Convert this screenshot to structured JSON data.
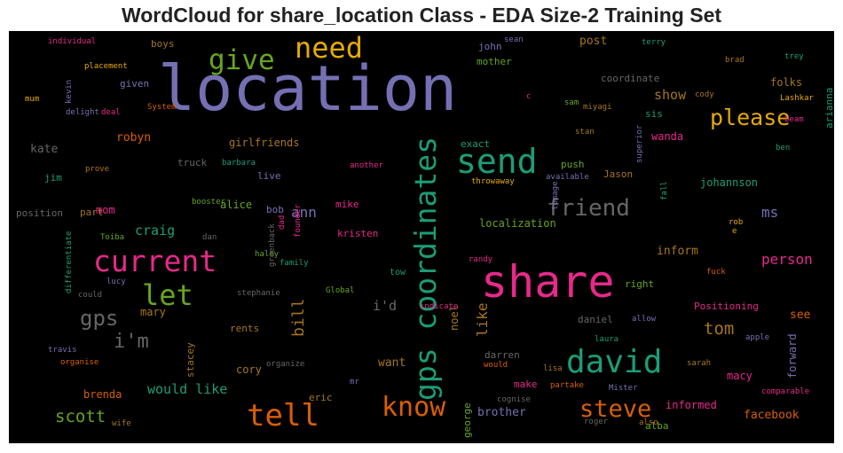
{
  "title": "WordCloud for share_location Class - EDA Size-2 Training Set",
  "chart_data": {
    "type": "wordcloud",
    "words": [
      {
        "text": "location",
        "color": "#7570b3"
      },
      {
        "text": "share",
        "color": "#e7298a"
      },
      {
        "text": "gps coordinates",
        "color": "#1b9e77"
      },
      {
        "text": "send",
        "color": "#1b9e77"
      },
      {
        "text": "david",
        "color": "#1b9e77"
      },
      {
        "text": "current",
        "color": "#e7298a"
      },
      {
        "text": "tell",
        "color": "#d95f02"
      },
      {
        "text": "friend",
        "color": "#666666"
      },
      {
        "text": "know",
        "color": "#d95f02"
      },
      {
        "text": "steve",
        "color": "#d95f02"
      },
      {
        "text": "give",
        "color": "#66a61e"
      },
      {
        "text": "need",
        "color": "#e6ab02"
      },
      {
        "text": "let",
        "color": "#66a61e"
      },
      {
        "text": "please",
        "color": "#e6ab02"
      },
      {
        "text": "gps",
        "color": "#666666"
      },
      {
        "text": "i'm",
        "color": "#666666"
      },
      {
        "text": "scott",
        "color": "#66a61e"
      },
      {
        "text": "tom",
        "color": "#a6761d"
      },
      {
        "text": "person",
        "color": "#e7298a"
      },
      {
        "text": "bill",
        "color": "#a6761d"
      },
      {
        "text": "ann",
        "color": "#7570b3"
      },
      {
        "text": "like",
        "color": "#a6761d"
      },
      {
        "text": "would like",
        "color": "#1b9e77"
      },
      {
        "text": "ms",
        "color": "#7570b3"
      },
      {
        "text": "craig",
        "color": "#1b9e77"
      },
      {
        "text": "show",
        "color": "#a6761d"
      },
      {
        "text": "i'd",
        "color": "#666666"
      },
      {
        "text": "robyn",
        "color": "#d95f02"
      },
      {
        "text": "facebook",
        "color": "#d95f02"
      },
      {
        "text": "brother",
        "color": "#7570b3"
      },
      {
        "text": "kate",
        "color": "#666666"
      },
      {
        "text": "mom",
        "color": "#e7298a"
      },
      {
        "text": "mary",
        "color": "#a6761d"
      },
      {
        "text": "post",
        "color": "#a6761d"
      },
      {
        "text": "inform",
        "color": "#a6761d"
      },
      {
        "text": "macy",
        "color": "#e7298a"
      },
      {
        "text": "see",
        "color": "#d95f02"
      },
      {
        "text": "forward",
        "color": "#7570b3"
      },
      {
        "text": "noel",
        "color": "#a6761d"
      },
      {
        "text": "want",
        "color": "#a6761d"
      },
      {
        "text": "brenda",
        "color": "#d95f02"
      },
      {
        "text": "cory",
        "color": "#a6761d"
      },
      {
        "text": "wanda",
        "color": "#e7298a"
      },
      {
        "text": "folks",
        "color": "#a6761d"
      },
      {
        "text": "johannson",
        "color": "#1b9e77"
      },
      {
        "text": "girlfriends",
        "color": "#a6761d"
      },
      {
        "text": "informed",
        "color": "#e7298a"
      },
      {
        "text": "localization",
        "color": "#66a61e"
      },
      {
        "text": "coordinate",
        "color": "#666666"
      },
      {
        "text": "jim",
        "color": "#1b9e77"
      },
      {
        "text": "part",
        "color": "#a6761d"
      },
      {
        "text": "alice",
        "color": "#66a61e"
      },
      {
        "text": "mike",
        "color": "#e7298a"
      },
      {
        "text": "kristen",
        "color": "#e7298a"
      },
      {
        "text": "exact",
        "color": "#1b9e77"
      },
      {
        "text": "push",
        "color": "#66a61e"
      },
      {
        "text": "Jason",
        "color": "#a6761d"
      },
      {
        "text": "sis",
        "color": "#1b9e77"
      },
      {
        "text": "arianna",
        "color": "#1b9e77"
      },
      {
        "text": "position",
        "color": "#666666"
      },
      {
        "text": "live",
        "color": "#7570b3"
      },
      {
        "text": "bob",
        "color": "#7570b3"
      },
      {
        "text": "truck",
        "color": "#666666"
      },
      {
        "text": "rents",
        "color": "#a6761d"
      },
      {
        "text": "eric",
        "color": "#a6761d"
      },
      {
        "text": "stacey",
        "color": "#a6761d"
      },
      {
        "text": "george",
        "color": "#66a61e"
      },
      {
        "text": "make",
        "color": "#e7298a"
      },
      {
        "text": "darren",
        "color": "#666666"
      },
      {
        "text": "daniel",
        "color": "#666666"
      },
      {
        "text": "right",
        "color": "#66a61e"
      },
      {
        "text": "Positioning",
        "color": "#e7298a"
      },
      {
        "text": "alba",
        "color": "#66a61e"
      },
      {
        "text": "mother",
        "color": "#66a61e"
      },
      {
        "text": "john",
        "color": "#7570b3"
      },
      {
        "text": "boys",
        "color": "#a6761d"
      },
      {
        "text": "tow",
        "color": "#1b9e77"
      },
      {
        "text": "given",
        "color": "#7570b3"
      },
      {
        "text": "individual",
        "color": "#e7298a"
      },
      {
        "text": "placement",
        "color": "#e6ab02"
      },
      {
        "text": "kevin",
        "color": "#7570b3"
      },
      {
        "text": "mum",
        "color": "#e6ab02"
      },
      {
        "text": "delight",
        "color": "#7570b3"
      },
      {
        "text": "deal",
        "color": "#e7298a"
      },
      {
        "text": "System",
        "color": "#d95f02"
      },
      {
        "text": "prove",
        "color": "#a6761d"
      },
      {
        "text": "barbara",
        "color": "#1b9e77"
      },
      {
        "text": "booster",
        "color": "#66a61e"
      },
      {
        "text": "another",
        "color": "#e7298a"
      },
      {
        "text": "throwaway",
        "color": "#e6ab02"
      },
      {
        "text": "tomage",
        "color": "#7570b3"
      },
      {
        "text": "available",
        "color": "#7570b3"
      },
      {
        "text": "fall",
        "color": "#1b9e77"
      },
      {
        "text": "superior",
        "color": "#7570b3"
      },
      {
        "text": "stan",
        "color": "#a6761d"
      },
      {
        "text": "miyagi",
        "color": "#a6761d"
      },
      {
        "text": "sam",
        "color": "#66a61e"
      },
      {
        "text": "cody",
        "color": "#a6761d"
      },
      {
        "text": "brad",
        "color": "#a6761d"
      },
      {
        "text": "trey",
        "color": "#1b9e77"
      },
      {
        "text": "terry",
        "color": "#1b9e77"
      },
      {
        "text": "sean",
        "color": "#7570b3"
      },
      {
        "text": "Lashkar",
        "color": "#e6ab02"
      },
      {
        "text": "beam",
        "color": "#e7298a"
      },
      {
        "text": "ben",
        "color": "#1b9e77"
      },
      {
        "text": "c",
        "color": "#e7298a"
      },
      {
        "text": "rob",
        "color": "#e6ab02"
      },
      {
        "text": "e",
        "color": "#e6ab02"
      },
      {
        "text": "fuck",
        "color": "#d95f02"
      },
      {
        "text": "Toiba",
        "color": "#66a61e"
      },
      {
        "text": "dan",
        "color": "#666666"
      },
      {
        "text": "haley",
        "color": "#66a61e"
      },
      {
        "text": "lucy",
        "color": "#7570b3"
      },
      {
        "text": "could",
        "color": "#666666"
      },
      {
        "text": "stephanie",
        "color": "#666666"
      },
      {
        "text": "Global",
        "color": "#66a61e"
      },
      {
        "text": "family",
        "color": "#1b9e77"
      },
      {
        "text": "greenback",
        "color": "#666666"
      },
      {
        "text": "dad",
        "color": "#e7298a"
      },
      {
        "text": "founder",
        "color": "#e7298a"
      },
      {
        "text": "differentiate",
        "color": "#1b9e77"
      },
      {
        "text": "travis",
        "color": "#7570b3"
      },
      {
        "text": "organise",
        "color": "#d95f02"
      },
      {
        "text": "wife",
        "color": "#a6761d"
      },
      {
        "text": "organize",
        "color": "#666666"
      },
      {
        "text": "mr",
        "color": "#7570b3"
      },
      {
        "text": "randy",
        "color": "#e7298a"
      },
      {
        "text": "indicate",
        "color": "#e7298a"
      },
      {
        "text": "would",
        "color": "#d95f02"
      },
      {
        "text": "cognise",
        "color": "#666666"
      },
      {
        "text": "lisa",
        "color": "#a6761d"
      },
      {
        "text": "partake",
        "color": "#d95f02"
      },
      {
        "text": "Mister",
        "color": "#7570b3"
      },
      {
        "text": "roger",
        "color": "#666666"
      },
      {
        "text": "also",
        "color": "#a6761d"
      },
      {
        "text": "laura",
        "color": "#1b9e77"
      },
      {
        "text": "allow",
        "color": "#7570b3"
      },
      {
        "text": "apple",
        "color": "#7570b3"
      },
      {
        "text": "sarah",
        "color": "#a6761d"
      },
      {
        "text": "comparable",
        "color": "#e7298a"
      }
    ]
  }
}
